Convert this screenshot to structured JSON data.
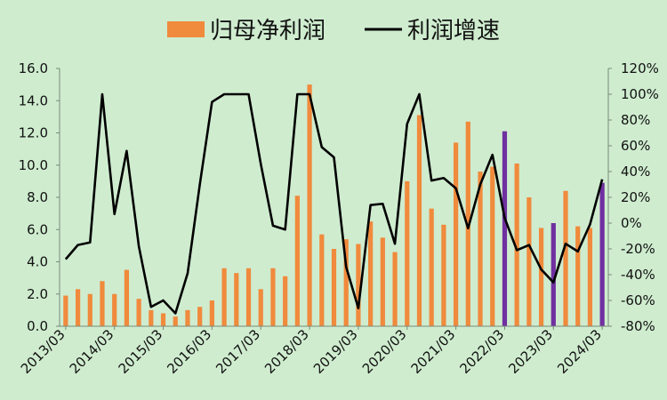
{
  "chart_data": {
    "type": "bar+line",
    "title": "",
    "xlabel": "",
    "ylabel": "",
    "legend": {
      "position": "top",
      "entries": [
        {
          "label": "归母净利润",
          "color": "#f08a3c",
          "kind": "bar"
        },
        {
          "label": "利润增速",
          "color": "#000000",
          "kind": "line"
        }
      ]
    },
    "grid": false,
    "ylim_left": [
      0,
      16
    ],
    "ylim_right": [
      -80,
      120
    ],
    "left_ticks": [
      "0.0",
      "2.0",
      "4.0",
      "6.0",
      "8.0",
      "10.0",
      "12.0",
      "14.0",
      "16.0"
    ],
    "right_ticks": [
      "-80%",
      "-60%",
      "-40%",
      "-20%",
      "0%",
      "20%",
      "40%",
      "60%",
      "80%",
      "100%",
      "120%"
    ],
    "x_tick_labels": [
      "2013/03",
      "2014/03",
      "2015/03",
      "2016/03",
      "2017/03",
      "2018/03",
      "2019/03",
      "2020/03",
      "2021/03",
      "2022/03",
      "2023/03",
      "2024/03"
    ],
    "x_tick_quarter_index": [
      0,
      4,
      8,
      12,
      16,
      20,
      24,
      28,
      32,
      36,
      40,
      44
    ],
    "series": [
      {
        "name": "归母净利润",
        "axis": "left",
        "type": "bar",
        "color": "#f08a3c",
        "highlight_color": "#7030a0",
        "highlight_indices": [
          36,
          40,
          44
        ],
        "values": [
          1.9,
          2.3,
          2.0,
          2.8,
          2.0,
          3.5,
          1.7,
          1.0,
          0.8,
          0.6,
          1.0,
          1.2,
          1.6,
          3.6,
          3.3,
          3.6,
          2.3,
          3.6,
          3.1,
          8.1,
          15.0,
          5.7,
          4.8,
          5.4,
          5.1,
          6.5,
          5.5,
          4.6,
          9.0,
          13.1,
          7.3,
          6.3,
          11.4,
          12.7,
          9.6,
          9.9,
          12.1,
          10.1,
          8.0,
          6.1,
          6.4,
          8.4,
          6.2,
          6.1,
          8.9
        ]
      },
      {
        "name": "利润增速",
        "axis": "right",
        "type": "line",
        "color": "#000000",
        "values": [
          -28,
          -17,
          -15,
          100,
          7,
          56,
          -18,
          -65,
          -60,
          -70,
          -39,
          30,
          94,
          100,
          100,
          100,
          46,
          -2,
          -5,
          100,
          100,
          59,
          51,
          -34,
          -66,
          14,
          15,
          -16,
          77,
          100,
          33,
          35,
          27,
          -4,
          30,
          53,
          4,
          -21,
          -17,
          -36,
          -46,
          -16,
          -22,
          -1,
          34
        ]
      }
    ]
  }
}
